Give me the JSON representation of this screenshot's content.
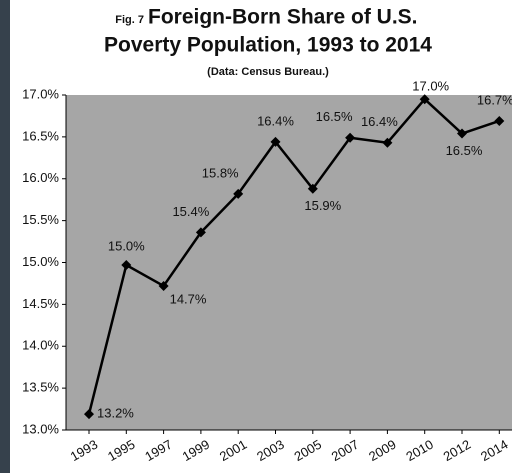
{
  "chart_data": {
    "type": "line",
    "title_prefix": "Fig. 7",
    "title": "Foreign-Born Share of U.S.",
    "title_line2": "Poverty Population, 1993 to 2014",
    "subtitle": "(Data: Census Bureau.)",
    "categories": [
      "1993",
      "1995",
      "1997",
      "1999",
      "2001",
      "2003",
      "2005",
      "2007",
      "2009",
      "2010",
      "2012",
      "2014"
    ],
    "values": [
      13.19,
      14.97,
      14.72,
      15.36,
      15.82,
      16.44,
      15.88,
      16.49,
      16.43,
      16.95,
      16.54,
      16.69
    ],
    "value_labels": [
      "13.2%",
      "15.0%",
      "14.7%",
      "15.4%",
      "15.8%",
      "16.4%",
      "15.9%",
      "16.5%",
      "16.4%",
      "17.0%",
      "16.5%",
      "16.7%"
    ],
    "color": "#000000",
    "plot_color": "#a6a6a6",
    "ylim": [
      13.0,
      17.0
    ],
    "yticks": [
      {
        "value": 13.0,
        "label": "13.0%"
      },
      {
        "value": 13.5,
        "label": "13.5%"
      },
      {
        "value": 14.0,
        "label": "14.0%"
      },
      {
        "value": 14.5,
        "label": "14.5%"
      },
      {
        "value": 15.0,
        "label": "15.0%"
      },
      {
        "value": 15.5,
        "label": "15.5%"
      },
      {
        "value": 16.0,
        "label": "16.0%"
      },
      {
        "value": 16.5,
        "label": "16.5%"
      },
      {
        "value": 17.0,
        "label": "17.0%"
      }
    ],
    "grid": false
  }
}
